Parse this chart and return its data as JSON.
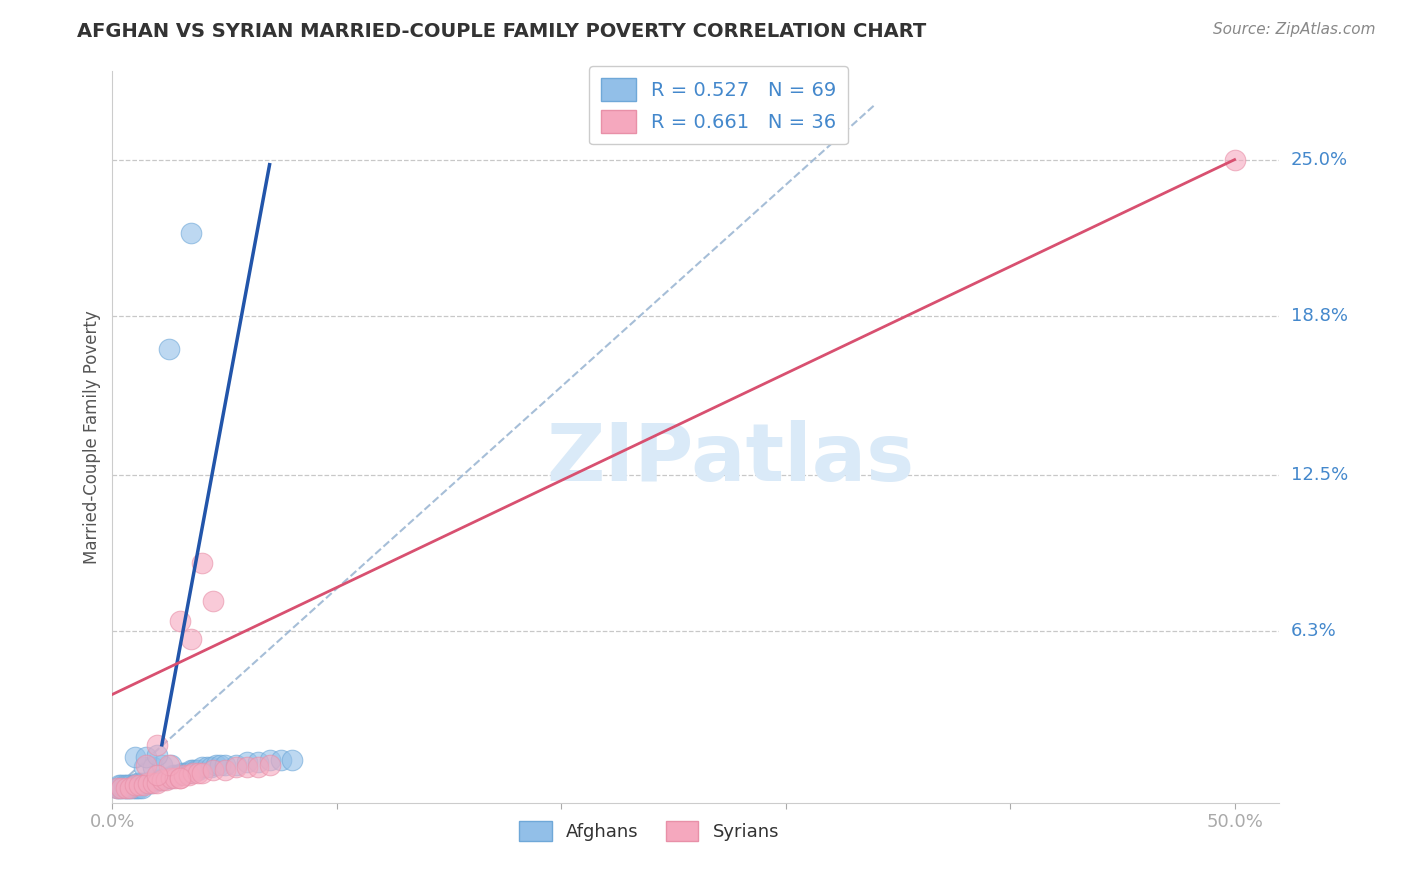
{
  "title": "AFGHAN VS SYRIAN MARRIED-COUPLE FAMILY POVERTY CORRELATION CHART",
  "source": "Source: ZipAtlas.com",
  "ylabel": "Married-Couple Family Poverty",
  "xlim": [
    0.0,
    0.52
  ],
  "ylim": [
    -0.005,
    0.285
  ],
  "plot_ylim": [
    0.0,
    0.28
  ],
  "ytick_positions": [
    0.063,
    0.125,
    0.188,
    0.25
  ],
  "ytick_labels": [
    "6.3%",
    "12.5%",
    "18.8%",
    "25.0%"
  ],
  "afghan_R": 0.527,
  "afghan_N": 69,
  "syrian_R": 0.661,
  "syrian_N": 36,
  "afghan_color": "#92bfe8",
  "afghan_edge_color": "#6fa8d8",
  "syrian_color": "#f5a8be",
  "syrian_edge_color": "#e890a8",
  "afghan_line_color": "#2255aa",
  "syrian_line_color": "#d85070",
  "diagonal_color": "#90aece",
  "background_color": "#ffffff",
  "grid_color": "#bbbbbb",
  "watermark_color": "#daeaf8",
  "title_color": "#333333",
  "source_color": "#888888",
  "axis_label_color": "#555555",
  "tick_label_color": "#4488cc",
  "right_label_color": "#4488cc",
  "afghan_line_x1": 0.022,
  "afghan_line_y1": 0.018,
  "afghan_line_x2": 0.07,
  "afghan_line_y2": 0.248,
  "dash_line_x1": 0.0,
  "dash_line_y1": 0.0,
  "dash_line_x2": 0.34,
  "dash_line_y2": 0.272,
  "syrian_line_x1": 0.0,
  "syrian_line_y1": 0.038,
  "syrian_line_x2": 0.5,
  "syrian_line_y2": 0.25,
  "afghan_points": [
    [
      0.002,
      0.001
    ],
    [
      0.003,
      0.001
    ],
    [
      0.004,
      0.001
    ],
    [
      0.005,
      0.001
    ],
    [
      0.006,
      0.001
    ],
    [
      0.007,
      0.001
    ],
    [
      0.008,
      0.001
    ],
    [
      0.009,
      0.001
    ],
    [
      0.01,
      0.001
    ],
    [
      0.011,
      0.001
    ],
    [
      0.012,
      0.001
    ],
    [
      0.013,
      0.001
    ],
    [
      0.003,
      0.002
    ],
    [
      0.004,
      0.002
    ],
    [
      0.005,
      0.002
    ],
    [
      0.006,
      0.002
    ],
    [
      0.007,
      0.002
    ],
    [
      0.008,
      0.002
    ],
    [
      0.009,
      0.002
    ],
    [
      0.01,
      0.002
    ],
    [
      0.011,
      0.003
    ],
    [
      0.012,
      0.003
    ],
    [
      0.013,
      0.003
    ],
    [
      0.014,
      0.003
    ],
    [
      0.015,
      0.003
    ],
    [
      0.016,
      0.003
    ],
    [
      0.017,
      0.003
    ],
    [
      0.018,
      0.004
    ],
    [
      0.019,
      0.004
    ],
    [
      0.02,
      0.004
    ],
    [
      0.021,
      0.004
    ],
    [
      0.022,
      0.004
    ],
    [
      0.023,
      0.005
    ],
    [
      0.024,
      0.005
    ],
    [
      0.025,
      0.005
    ],
    [
      0.026,
      0.005
    ],
    [
      0.027,
      0.006
    ],
    [
      0.028,
      0.006
    ],
    [
      0.029,
      0.006
    ],
    [
      0.03,
      0.006
    ],
    [
      0.031,
      0.007
    ],
    [
      0.032,
      0.007
    ],
    [
      0.033,
      0.007
    ],
    [
      0.034,
      0.007
    ],
    [
      0.035,
      0.008
    ],
    [
      0.036,
      0.008
    ],
    [
      0.037,
      0.008
    ],
    [
      0.038,
      0.008
    ],
    [
      0.04,
      0.009
    ],
    [
      0.042,
      0.009
    ],
    [
      0.044,
      0.009
    ],
    [
      0.046,
      0.01
    ],
    [
      0.048,
      0.01
    ],
    [
      0.05,
      0.01
    ],
    [
      0.055,
      0.01
    ],
    [
      0.06,
      0.011
    ],
    [
      0.065,
      0.011
    ],
    [
      0.07,
      0.012
    ],
    [
      0.075,
      0.012
    ],
    [
      0.08,
      0.012
    ],
    [
      0.014,
      0.009
    ],
    [
      0.018,
      0.009
    ],
    [
      0.022,
      0.01
    ],
    [
      0.026,
      0.01
    ],
    [
      0.01,
      0.013
    ],
    [
      0.015,
      0.013
    ],
    [
      0.02,
      0.014
    ],
    [
      0.025,
      0.175
    ],
    [
      0.035,
      0.221
    ]
  ],
  "syrian_points": [
    [
      0.002,
      0.001
    ],
    [
      0.004,
      0.001
    ],
    [
      0.006,
      0.001
    ],
    [
      0.008,
      0.001
    ],
    [
      0.01,
      0.002
    ],
    [
      0.012,
      0.002
    ],
    [
      0.014,
      0.002
    ],
    [
      0.016,
      0.003
    ],
    [
      0.018,
      0.003
    ],
    [
      0.02,
      0.003
    ],
    [
      0.022,
      0.004
    ],
    [
      0.024,
      0.004
    ],
    [
      0.026,
      0.005
    ],
    [
      0.028,
      0.005
    ],
    [
      0.03,
      0.005
    ],
    [
      0.032,
      0.006
    ],
    [
      0.034,
      0.006
    ],
    [
      0.036,
      0.007
    ],
    [
      0.038,
      0.007
    ],
    [
      0.04,
      0.007
    ],
    [
      0.045,
      0.008
    ],
    [
      0.05,
      0.008
    ],
    [
      0.055,
      0.009
    ],
    [
      0.06,
      0.009
    ],
    [
      0.065,
      0.009
    ],
    [
      0.07,
      0.01
    ],
    [
      0.015,
      0.01
    ],
    [
      0.025,
      0.01
    ],
    [
      0.035,
      0.06
    ],
    [
      0.045,
      0.075
    ],
    [
      0.02,
      0.006
    ],
    [
      0.03,
      0.067
    ],
    [
      0.04,
      0.09
    ],
    [
      0.02,
      0.018
    ],
    [
      0.03,
      0.005
    ],
    [
      0.5,
      0.25
    ]
  ]
}
